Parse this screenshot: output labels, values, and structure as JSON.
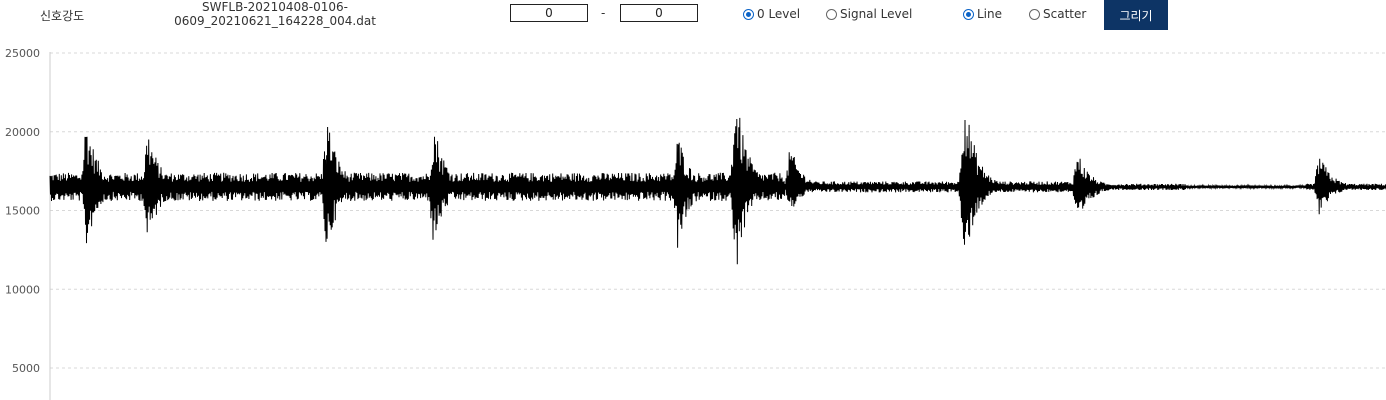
{
  "toolbar": {
    "signal_label": "신호강도",
    "filename_line1": "SWFLB-20210408-0106-",
    "filename_line2": "0609_20210621_164228_004.dat",
    "range_start_value": "0",
    "range_separator": "-",
    "range_end_value": "0",
    "level_options": [
      {
        "label": "0 Level",
        "checked": true
      },
      {
        "label": "Signal Level",
        "checked": false
      }
    ],
    "style_options": [
      {
        "label": "Line",
        "checked": true
      },
      {
        "label": "Scatter",
        "checked": false
      }
    ],
    "draw_button": "그리기",
    "accent_color": "#0d3465",
    "radio_color": "#0b63c7"
  },
  "chart_data": {
    "type": "line",
    "title": "",
    "xlabel": "",
    "ylabel": "",
    "ylim": [
      3000,
      25000
    ],
    "yticks": [
      5000,
      10000,
      15000,
      20000,
      25000
    ],
    "ytick_labels": [
      "5000",
      "10000",
      "15000",
      "20000",
      "25000"
    ],
    "grid": true,
    "line_color": "#000000",
    "baseline": 16500,
    "bursts": [
      {
        "x": 0.027,
        "max": 21100,
        "min": 12400
      },
      {
        "x": 0.073,
        "max": 20400,
        "min": 12600
      },
      {
        "x": 0.207,
        "max": 21300,
        "min": 12100
      },
      {
        "x": 0.287,
        "max": 20900,
        "min": 12500
      },
      {
        "x": 0.47,
        "max": 20000,
        "min": 12200
      },
      {
        "x": 0.513,
        "max": 22900,
        "min": 10600
      },
      {
        "x": 0.554,
        "max": 19200,
        "min": 14700
      },
      {
        "x": 0.684,
        "max": 22900,
        "min": 11200
      },
      {
        "x": 0.769,
        "max": 18900,
        "min": 13600
      },
      {
        "x": 0.95,
        "max": 18700,
        "min": 14400
      }
    ]
  }
}
